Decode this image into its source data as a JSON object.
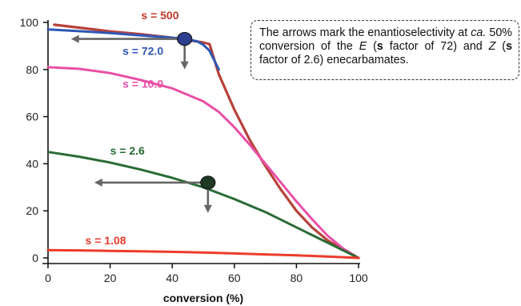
{
  "chart_data": {
    "type": "line",
    "xlabel": "conversion (%)",
    "ylabel": "",
    "xlim": [
      0,
      100
    ],
    "ylim": [
      0,
      100
    ],
    "xticks": [
      "0",
      "20",
      "40",
      "60",
      "80",
      "100"
    ],
    "yticks": [
      "0",
      "20",
      "40",
      "60",
      "80",
      "100"
    ],
    "grid": false,
    "series": [
      {
        "name": "s = 500",
        "color": "#b8413a",
        "x": [
          2,
          10,
          20,
          30,
          40,
          45,
          50,
          52,
          55,
          60,
          65,
          70,
          75,
          80,
          85,
          90,
          95,
          100
        ],
        "y": [
          99,
          97.8,
          96.2,
          95,
          93.5,
          92.5,
          91.5,
          90.8,
          78,
          63,
          50,
          39,
          29,
          20,
          13,
          7.5,
          3.5,
          0
        ]
      },
      {
        "name": "s = 72.0",
        "color": "#2e57b5",
        "x": [
          0,
          10,
          20,
          30,
          40,
          45,
          48,
          50,
          52,
          55
        ],
        "y": [
          97,
          96.3,
          95.5,
          94.5,
          93.5,
          92.8,
          92,
          90.5,
          88,
          80
        ]
      },
      {
        "name": "s = 10.0",
        "color": "#e94fa6",
        "x": [
          0,
          10,
          20,
          30,
          40,
          50,
          55,
          60,
          65,
          70,
          75,
          80,
          85,
          90,
          95,
          100
        ],
        "y": [
          81,
          80.3,
          78.5,
          75.5,
          72,
          66.5,
          62,
          55.5,
          48,
          40,
          32,
          24,
          16.5,
          9.5,
          4,
          0
        ]
      },
      {
        "name": "s = 2.6",
        "color": "#2a6b35",
        "x": [
          0,
          10,
          20,
          30,
          40,
          50,
          60,
          70,
          80,
          90,
          100
        ],
        "y": [
          45,
          43,
          40.5,
          37.5,
          34,
          30,
          25,
          19.5,
          13,
          6.5,
          0
        ]
      },
      {
        "name": "s = 1.08",
        "color": "#ee3b2b",
        "x": [
          0,
          10,
          20,
          30,
          40,
          50,
          60,
          70,
          80,
          90,
          100
        ],
        "y": [
          3.3,
          3.2,
          3.0,
          2.8,
          2.6,
          2.3,
          1.9,
          1.5,
          1.1,
          0.6,
          0
        ]
      }
    ],
    "series_labels": [
      {
        "text": "s = 500",
        "color": "#c0392b",
        "x": 30,
        "y": 103
      },
      {
        "text": "s = 72.0",
        "color": "#2e57b5",
        "x": 24,
        "y": 88
      },
      {
        "text": "s = 10.0",
        "color": "#e94fa6",
        "x": 24,
        "y": 74
      },
      {
        "text": "s = 2.6",
        "color": "#2a6b35",
        "x": 20,
        "y": 45.5
      },
      {
        "text": "s = 1.08",
        "color": "#ee3b2b",
        "x": 12,
        "y": 7.5
      }
    ],
    "markers": [
      {
        "x": 44,
        "y": 93,
        "color": "#2e3f8f"
      },
      {
        "x": 51.5,
        "y": 32,
        "color": "#1f3a24"
      }
    ],
    "annotation": {
      "parts": [
        {
          "text": "The arrows mark the enantioselectivity at ",
          "style": "normal"
        },
        {
          "text": "ca.",
          "style": "italic"
        },
        {
          "text": " 50% conversion of the ",
          "style": "normal"
        },
        {
          "text": "E",
          "style": "italic"
        },
        {
          "text": " (",
          "style": "normal"
        },
        {
          "text": "s",
          "style": "bold"
        },
        {
          "text": " factor of 72) and ",
          "style": "normal"
        },
        {
          "text": "Z",
          "style": "italic"
        },
        {
          "text": " (",
          "style": "normal"
        },
        {
          "text": "s",
          "style": "bold"
        },
        {
          "text": " factor of 2.6) enecarbamates.",
          "style": "normal"
        }
      ]
    }
  }
}
